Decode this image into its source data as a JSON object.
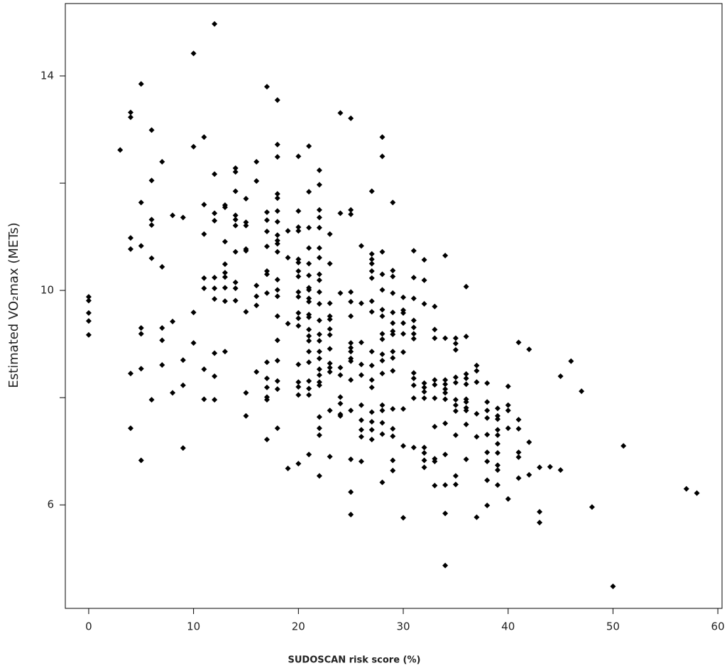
{
  "chart_data": {
    "type": "scatter",
    "x_label": "SUDOSCAN risk score (%)",
    "y_label": "Estimated VO₂max (METs)",
    "color": "#000000",
    "xlim": [
      -2.23,
      60.4
    ],
    "ylim": [
      4.07,
      15.35
    ],
    "xticks": [
      0,
      10,
      20,
      30,
      40,
      50,
      60
    ],
    "yticks": [
      6,
      {
        "value": 8,
        "label": null
      },
      10,
      {
        "value": 12,
        "label": null
      },
      14
    ],
    "x": [
      0,
      0,
      0,
      0,
      0,
      3,
      4,
      4,
      4,
      4,
      4,
      4,
      5,
      5,
      5,
      5,
      5,
      5,
      5,
      6,
      6,
      6,
      6,
      6,
      6,
      7,
      7,
      7,
      7,
      7,
      8,
      8,
      8,
      9,
      9,
      9,
      9,
      10,
      10,
      10,
      10,
      11,
      11,
      11,
      11,
      11,
      11,
      11,
      12,
      12,
      12,
      12,
      12,
      12,
      12,
      12,
      12,
      12,
      13,
      13,
      13,
      13,
      13,
      13,
      13,
      13,
      13,
      14,
      14,
      14,
      14,
      14,
      14,
      14,
      14,
      14,
      14,
      15,
      15,
      15,
      15,
      15,
      15,
      15,
      15,
      16,
      16,
      16,
      16,
      16,
      16,
      17,
      17,
      17,
      17,
      17,
      17,
      17,
      17,
      17,
      17,
      17,
      17,
      17,
      17,
      18,
      18,
      18,
      18,
      18,
      18,
      18,
      18,
      18,
      18,
      18,
      18,
      18,
      18,
      18,
      18,
      18,
      18,
      18,
      18,
      19,
      19,
      19,
      19,
      20,
      20,
      20,
      20,
      20,
      20,
      20,
      20,
      20,
      20,
      20,
      20,
      20,
      20,
      20,
      20,
      20,
      20,
      21,
      21,
      21,
      21,
      21,
      21,
      21,
      21,
      21,
      21,
      21,
      21,
      21,
      21,
      21,
      21,
      21,
      21,
      21,
      21,
      21,
      22,
      22,
      22,
      22,
      22,
      22,
      22,
      22,
      22,
      22,
      22,
      22,
      22,
      22,
      22,
      22,
      22,
      22,
      22,
      22,
      22,
      22,
      22,
      22,
      23,
      23,
      23,
      23,
      23,
      23,
      23,
      23,
      23,
      23,
      23,
      23,
      23,
      24,
      24,
      24,
      24,
      24,
      24,
      24,
      24,
      24,
      25,
      25,
      25,
      25,
      25,
      25,
      25,
      25,
      25,
      25,
      25,
      25,
      25,
      25,
      25,
      25,
      26,
      26,
      26,
      26,
      26,
      26,
      26,
      26,
      26,
      26,
      27,
      27,
      27,
      27,
      27,
      27,
      27,
      27,
      27,
      27,
      27,
      27,
      27,
      27,
      27,
      27,
      28,
      28,
      28,
      28,
      28,
      28,
      28,
      28,
      28,
      28,
      28,
      28,
      28,
      28,
      28,
      28,
      28,
      29,
      29,
      29,
      29,
      29,
      29,
      29,
      29,
      29,
      29,
      29,
      29,
      29,
      29,
      29,
      29,
      30,
      30,
      30,
      30,
      30,
      30,
      30,
      30,
      30,
      31,
      31,
      31,
      31,
      31,
      31,
      31,
      31,
      31,
      31,
      31,
      31,
      32,
      32,
      32,
      32,
      32,
      32,
      32,
      32,
      32,
      32,
      32,
      33,
      33,
      33,
      33,
      33,
      33,
      33,
      33,
      33,
      33,
      34,
      34,
      34,
      34,
      34,
      34,
      34,
      34,
      34,
      34,
      34,
      34,
      35,
      35,
      35,
      35,
      35,
      35,
      35,
      35,
      35,
      35,
      35,
      36,
      36,
      36,
      36,
      36,
      36,
      36,
      36,
      36,
      36,
      36,
      37,
      37,
      37,
      37,
      37,
      37,
      38,
      38,
      38,
      38,
      38,
      38,
      38,
      38,
      38,
      39,
      39,
      39,
      39,
      39,
      39,
      39,
      39,
      39,
      39,
      40,
      40,
      40,
      40,
      40,
      41,
      41,
      41,
      41,
      41,
      41,
      42,
      42,
      42,
      43,
      43,
      43,
      44,
      45,
      45,
      46,
      47,
      48,
      50,
      51,
      57,
      58
    ],
    "values": [
      9.88,
      9.81,
      9.58,
      9.43,
      9.17,
      12.62,
      13.32,
      13.23,
      10.98,
      10.77,
      8.45,
      7.43,
      13.85,
      11.64,
      10.83,
      9.3,
      9.19,
      8.54,
      6.83,
      12.99,
      12.05,
      11.32,
      11.22,
      10.6,
      7.96,
      12.4,
      10.44,
      9.3,
      9.07,
      8.61,
      11.4,
      9.42,
      8.09,
      11.36,
      8.7,
      8.23,
      7.06,
      14.42,
      12.68,
      9.59,
      9.02,
      12.86,
      11.6,
      11.05,
      10.23,
      10.04,
      8.53,
      7.97,
      14.97,
      12.17,
      11.44,
      11.3,
      10.24,
      10.04,
      9.84,
      8.83,
      8.4,
      7.96,
      11.59,
      11.55,
      10.91,
      10.49,
      10.33,
      10.25,
      10.05,
      9.8,
      8.86,
      12.28,
      12.21,
      11.85,
      11.4,
      11.32,
      11.21,
      10.72,
      10.15,
      10.04,
      9.81,
      11.71,
      11.27,
      11.21,
      10.77,
      10.74,
      9.6,
      8.09,
      7.66,
      12.4,
      12.04,
      10.09,
      9.89,
      9.72,
      8.48,
      13.8,
      11.46,
      11.31,
      11.1,
      10.82,
      10.36,
      10.3,
      9.95,
      8.66,
      8.36,
      8.19,
      8.01,
      7.96,
      7.22,
      13.55,
      12.72,
      12.49,
      11.8,
      11.72,
      11.48,
      11.28,
      11.03,
      10.93,
      10.87,
      10.72,
      10.2,
      10.01,
      9.89,
      9.52,
      9.07,
      8.69,
      8.31,
      8.16,
      7.43,
      11.11,
      10.61,
      9.38,
      6.68,
      12.5,
      11.48,
      11.18,
      11.11,
      10.58,
      10.52,
      10.36,
      10.26,
      9.97,
      9.88,
      9.58,
      9.48,
      9.34,
      8.62,
      8.29,
      8.2,
      8.05,
      6.77,
      12.69,
      11.84,
      11.17,
      10.79,
      10.5,
      10.28,
      10.05,
      10.01,
      9.85,
      9.79,
      9.55,
      9.5,
      9.27,
      9.15,
      9.06,
      8.86,
      8.66,
      8.31,
      8.17,
      8.05,
      6.94,
      12.24,
      11.97,
      11.5,
      11.36,
      11.17,
      10.79,
      10.61,
      10.3,
      10.19,
      9.97,
      9.75,
      9.44,
      9.18,
      9.06,
      8.86,
      8.73,
      8.53,
      8.42,
      8.29,
      8.23,
      7.64,
      7.43,
      7.3,
      6.54,
      11.05,
      10.5,
      9.76,
      9.52,
      9.46,
      9.28,
      9.17,
      8.91,
      8.64,
      8.56,
      8.48,
      7.76,
      6.9,
      13.31,
      11.44,
      9.95,
      8.56,
      8.42,
      8.01,
      7.89,
      7.69,
      7.66,
      13.21,
      11.5,
      11.42,
      9.97,
      9.79,
      9.52,
      9.02,
      8.93,
      8.86,
      8.73,
      8.68,
      8.33,
      7.76,
      6.85,
      6.24,
      5.82,
      10.83,
      9.76,
      9.03,
      8.62,
      8.42,
      7.86,
      7.58,
      7.4,
      7.27,
      6.81,
      11.85,
      10.68,
      10.58,
      10.5,
      10.36,
      10.23,
      9.8,
      9.6,
      8.86,
      8.6,
      8.33,
      8.19,
      7.73,
      7.55,
      7.4,
      7.22,
      12.86,
      12.5,
      10.72,
      10.3,
      10.01,
      9.64,
      9.52,
      9.19,
      9.09,
      8.81,
      8.69,
      8.45,
      7.86,
      7.76,
      7.53,
      7.32,
      6.42,
      11.64,
      10.37,
      10.26,
      9.95,
      9.59,
      9.39,
      9.24,
      9.18,
      8.86,
      8.74,
      8.5,
      7.79,
      7.42,
      7.28,
      6.83,
      6.64,
      9.87,
      9.63,
      9.58,
      9.39,
      9.19,
      8.85,
      7.79,
      7.1,
      5.76,
      10.74,
      10.24,
      9.85,
      9.44,
      9.31,
      9.19,
      9.1,
      8.46,
      8.36,
      8.23,
      7.99,
      7.07,
      10.57,
      10.19,
      9.75,
      8.27,
      8.19,
      8.11,
      7.99,
      7.07,
      6.97,
      6.83,
      6.7,
      9.7,
      9.27,
      9.11,
      8.33,
      8.24,
      7.99,
      7.46,
      6.86,
      6.81,
      6.36,
      10.65,
      9.11,
      8.33,
      8.25,
      8.16,
      8.09,
      7.97,
      7.52,
      6.94,
      6.37,
      5.84,
      4.87,
      9.11,
      9.01,
      8.89,
      8.38,
      8.28,
      7.96,
      7.86,
      7.75,
      7.3,
      6.54,
      6.38,
      10.07,
      9.14,
      8.44,
      8.36,
      8.25,
      7.97,
      7.92,
      7.81,
      7.76,
      7.5,
      6.85,
      8.6,
      8.5,
      8.29,
      7.7,
      7.27,
      5.77,
      8.27,
      7.92,
      7.76,
      7.62,
      7.31,
      6.98,
      6.81,
      6.46,
      5.99,
      7.8,
      7.66,
      7.6,
      7.4,
      7.3,
      7.14,
      6.97,
      6.74,
      6.65,
      6.37,
      8.21,
      7.86,
      7.76,
      7.43,
      6.11,
      9.03,
      7.59,
      7.42,
      6.98,
      6.89,
      6.5,
      8.9,
      7.17,
      6.56,
      6.7,
      5.87,
      5.67,
      6.71,
      8.4,
      6.65,
      8.68,
      8.12,
      5.96,
      4.48,
      7.1,
      6.3,
      6.22
    ]
  }
}
